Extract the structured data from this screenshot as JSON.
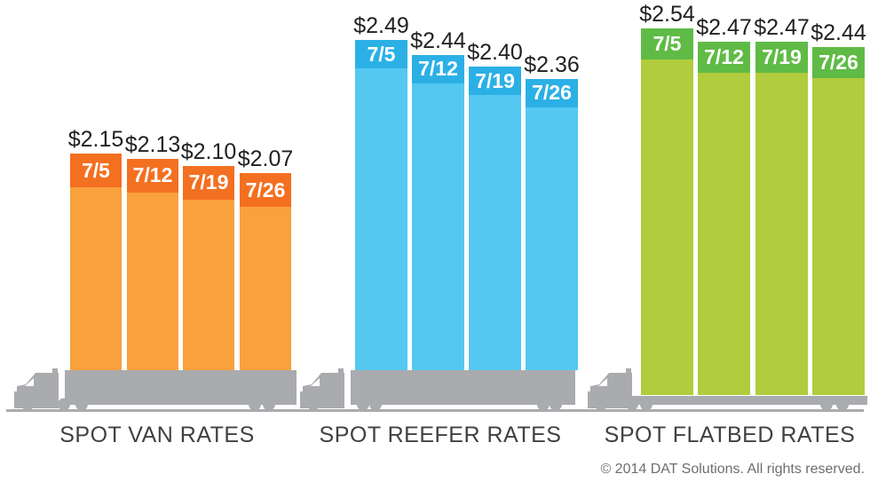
{
  "chart_data": {
    "type": "bar",
    "title": "",
    "categories": [
      "7/5",
      "7/12",
      "7/19",
      "7/26"
    ],
    "series": [
      {
        "name": "SPOT VAN RATES",
        "values": [
          2.15,
          2.13,
          2.1,
          2.07
        ],
        "labels": [
          "$2.15",
          "$2.13",
          "$2.10",
          "$2.07"
        ],
        "cap_color": "#F37021",
        "body_color": "#F9A13C"
      },
      {
        "name": "SPOT REEFER RATES",
        "values": [
          2.49,
          2.44,
          2.4,
          2.36
        ],
        "labels": [
          "$2.49",
          "$2.44",
          "$2.40",
          "$2.36"
        ],
        "cap_color": "#2BB0E6",
        "body_color": "#54C8F0"
      },
      {
        "name": "SPOT FLATBED RATES",
        "values": [
          2.54,
          2.47,
          2.47,
          2.44
        ],
        "labels": [
          "$2.54",
          "$2.47",
          "$2.47",
          "$2.44"
        ],
        "cap_color": "#5FBB46",
        "body_color": "#B1CC3C"
      }
    ],
    "value_prefix": "$",
    "legend_position": "none",
    "grid": false
  },
  "footer": {
    "copyright": "© 2014 DAT Solutions. All rights reserved."
  },
  "colors": {
    "background": "#FFFFFF",
    "truck": "#A9ABAE",
    "ground_line": "#A9ABAE",
    "group_label_text": "#414042",
    "price_label_text": "#231F20",
    "date_label_text": "#FFFFFF",
    "copyright_text": "#6D6E71"
  }
}
